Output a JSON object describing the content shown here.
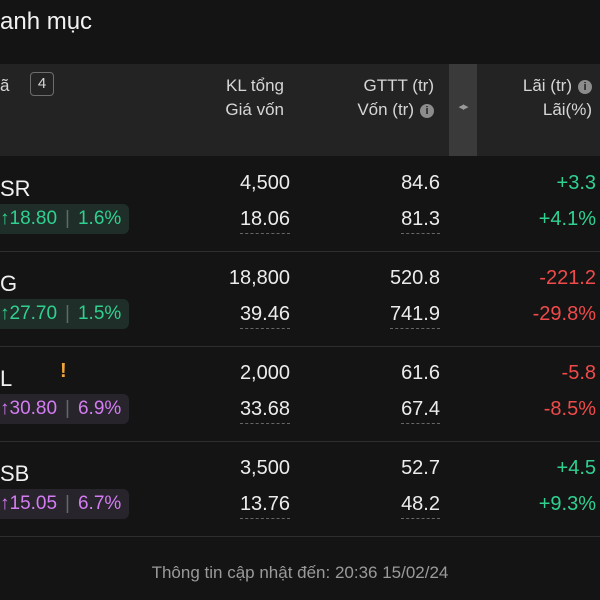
{
  "title": "anh mục",
  "header": {
    "ma": "ã",
    "count": "4",
    "kl_line1": "KL tổng",
    "kl_line2": "Giá vốn",
    "gttt_line1": "GTTT (tr)",
    "gttt_line2": "Vốn (tr)",
    "lai_line1": "Lãi (tr)",
    "lai_line2": "Lãi(%)"
  },
  "rows": [
    {
      "ticker": "SR",
      "price": "18.80",
      "change": "1.6%",
      "color": "green",
      "kl": "4,500",
      "gia_von": "18.06",
      "gttt": "84.6",
      "von": "81.3",
      "lai": "+3.3",
      "lai_pct": "+4.1%",
      "sign": "pos",
      "warning": false
    },
    {
      "ticker": "G",
      "price": "27.70",
      "change": "1.5%",
      "color": "green",
      "kl": "18,800",
      "gia_von": "39.46",
      "gttt": "520.8",
      "von": "741.9",
      "lai": "-221.2",
      "lai_pct": "-29.8%",
      "sign": "neg",
      "warning": false
    },
    {
      "ticker": "L",
      "price": "30.80",
      "change": "6.9%",
      "color": "purple",
      "kl": "2,000",
      "gia_von": "33.68",
      "gttt": "61.6",
      "von": "67.4",
      "lai": "-5.8",
      "lai_pct": "-8.5%",
      "sign": "neg",
      "warning": true
    },
    {
      "ticker": "SB",
      "price": "15.05",
      "change": "6.7%",
      "color": "purple",
      "kl": "3,500",
      "gia_von": "13.76",
      "gttt": "52.7",
      "von": "48.2",
      "lai": "+4.5",
      "lai_pct": "+9.3%",
      "sign": "pos",
      "warning": false
    }
  ],
  "footer": "Thông tin cập nhật đến: 20:36 15/02/24",
  "colors": {
    "up": "#2fd191",
    "down": "#f04a4a",
    "ceiling": "#d47cf2",
    "warning": "#f2a53a"
  }
}
